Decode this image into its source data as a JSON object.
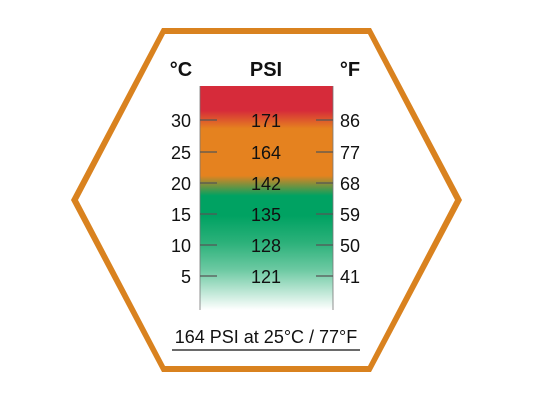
{
  "headers": {
    "celsius": "°C",
    "psi": "PSI",
    "fahrenheit": "°F"
  },
  "rows": [
    {
      "celsius": "30",
      "psi": "171",
      "fahrenheit": "86"
    },
    {
      "celsius": "25",
      "psi": "164",
      "fahrenheit": "77"
    },
    {
      "celsius": "20",
      "psi": "142",
      "fahrenheit": "68"
    },
    {
      "celsius": "15",
      "psi": "135",
      "fahrenheit": "59"
    },
    {
      "celsius": "10",
      "psi": "128",
      "fahrenheit": "50"
    },
    {
      "celsius": "5",
      "psi": "121",
      "fahrenheit": "41"
    }
  ],
  "caption": "164 PSI at 25°C / 77°F",
  "colors": {
    "hexagon_outline": "#d9821f",
    "hexagon_inner": "#ffffff",
    "red": "#d62b3a",
    "orange": "#e5821f",
    "green": "#00a262",
    "text": "#111111"
  }
}
